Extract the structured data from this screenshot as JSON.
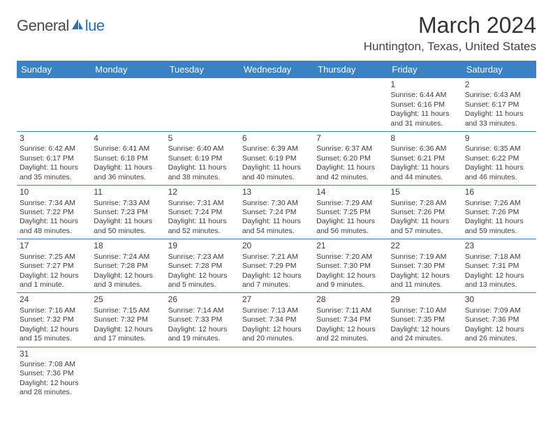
{
  "logo": {
    "text1": "General",
    "text2": "lue"
  },
  "title": "March 2024",
  "location": "Huntington, Texas, United States",
  "colors": {
    "headerBg": "#3b82c4",
    "headerText": "#ffffff",
    "logoBlue": "#2d6fb5",
    "text": "#333333"
  },
  "dayNames": [
    "Sunday",
    "Monday",
    "Tuesday",
    "Wednesday",
    "Thursday",
    "Friday",
    "Saturday"
  ],
  "weeks": [
    [
      null,
      null,
      null,
      null,
      null,
      {
        "n": "1",
        "sr": "Sunrise: 6:44 AM",
        "ss": "Sunset: 6:16 PM",
        "dl": "Daylight: 11 hours and 31 minutes."
      },
      {
        "n": "2",
        "sr": "Sunrise: 6:43 AM",
        "ss": "Sunset: 6:17 PM",
        "dl": "Daylight: 11 hours and 33 minutes."
      }
    ],
    [
      {
        "n": "3",
        "sr": "Sunrise: 6:42 AM",
        "ss": "Sunset: 6:17 PM",
        "dl": "Daylight: 11 hours and 35 minutes."
      },
      {
        "n": "4",
        "sr": "Sunrise: 6:41 AM",
        "ss": "Sunset: 6:18 PM",
        "dl": "Daylight: 11 hours and 36 minutes."
      },
      {
        "n": "5",
        "sr": "Sunrise: 6:40 AM",
        "ss": "Sunset: 6:19 PM",
        "dl": "Daylight: 11 hours and 38 minutes."
      },
      {
        "n": "6",
        "sr": "Sunrise: 6:39 AM",
        "ss": "Sunset: 6:19 PM",
        "dl": "Daylight: 11 hours and 40 minutes."
      },
      {
        "n": "7",
        "sr": "Sunrise: 6:37 AM",
        "ss": "Sunset: 6:20 PM",
        "dl": "Daylight: 11 hours and 42 minutes."
      },
      {
        "n": "8",
        "sr": "Sunrise: 6:36 AM",
        "ss": "Sunset: 6:21 PM",
        "dl": "Daylight: 11 hours and 44 minutes."
      },
      {
        "n": "9",
        "sr": "Sunrise: 6:35 AM",
        "ss": "Sunset: 6:22 PM",
        "dl": "Daylight: 11 hours and 46 minutes."
      }
    ],
    [
      {
        "n": "10",
        "sr": "Sunrise: 7:34 AM",
        "ss": "Sunset: 7:22 PM",
        "dl": "Daylight: 11 hours and 48 minutes."
      },
      {
        "n": "11",
        "sr": "Sunrise: 7:33 AM",
        "ss": "Sunset: 7:23 PM",
        "dl": "Daylight: 11 hours and 50 minutes."
      },
      {
        "n": "12",
        "sr": "Sunrise: 7:31 AM",
        "ss": "Sunset: 7:24 PM",
        "dl": "Daylight: 11 hours and 52 minutes."
      },
      {
        "n": "13",
        "sr": "Sunrise: 7:30 AM",
        "ss": "Sunset: 7:24 PM",
        "dl": "Daylight: 11 hours and 54 minutes."
      },
      {
        "n": "14",
        "sr": "Sunrise: 7:29 AM",
        "ss": "Sunset: 7:25 PM",
        "dl": "Daylight: 11 hours and 56 minutes."
      },
      {
        "n": "15",
        "sr": "Sunrise: 7:28 AM",
        "ss": "Sunset: 7:26 PM",
        "dl": "Daylight: 11 hours and 57 minutes."
      },
      {
        "n": "16",
        "sr": "Sunrise: 7:26 AM",
        "ss": "Sunset: 7:26 PM",
        "dl": "Daylight: 11 hours and 59 minutes."
      }
    ],
    [
      {
        "n": "17",
        "sr": "Sunrise: 7:25 AM",
        "ss": "Sunset: 7:27 PM",
        "dl": "Daylight: 12 hours and 1 minute."
      },
      {
        "n": "18",
        "sr": "Sunrise: 7:24 AM",
        "ss": "Sunset: 7:28 PM",
        "dl": "Daylight: 12 hours and 3 minutes."
      },
      {
        "n": "19",
        "sr": "Sunrise: 7:23 AM",
        "ss": "Sunset: 7:28 PM",
        "dl": "Daylight: 12 hours and 5 minutes."
      },
      {
        "n": "20",
        "sr": "Sunrise: 7:21 AM",
        "ss": "Sunset: 7:29 PM",
        "dl": "Daylight: 12 hours and 7 minutes."
      },
      {
        "n": "21",
        "sr": "Sunrise: 7:20 AM",
        "ss": "Sunset: 7:30 PM",
        "dl": "Daylight: 12 hours and 9 minutes."
      },
      {
        "n": "22",
        "sr": "Sunrise: 7:19 AM",
        "ss": "Sunset: 7:30 PM",
        "dl": "Daylight: 12 hours and 11 minutes."
      },
      {
        "n": "23",
        "sr": "Sunrise: 7:18 AM",
        "ss": "Sunset: 7:31 PM",
        "dl": "Daylight: 12 hours and 13 minutes."
      }
    ],
    [
      {
        "n": "24",
        "sr": "Sunrise: 7:16 AM",
        "ss": "Sunset: 7:32 PM",
        "dl": "Daylight: 12 hours and 15 minutes."
      },
      {
        "n": "25",
        "sr": "Sunrise: 7:15 AM",
        "ss": "Sunset: 7:32 PM",
        "dl": "Daylight: 12 hours and 17 minutes."
      },
      {
        "n": "26",
        "sr": "Sunrise: 7:14 AM",
        "ss": "Sunset: 7:33 PM",
        "dl": "Daylight: 12 hours and 19 minutes."
      },
      {
        "n": "27",
        "sr": "Sunrise: 7:13 AM",
        "ss": "Sunset: 7:34 PM",
        "dl": "Daylight: 12 hours and 20 minutes."
      },
      {
        "n": "28",
        "sr": "Sunrise: 7:11 AM",
        "ss": "Sunset: 7:34 PM",
        "dl": "Daylight: 12 hours and 22 minutes."
      },
      {
        "n": "29",
        "sr": "Sunrise: 7:10 AM",
        "ss": "Sunset: 7:35 PM",
        "dl": "Daylight: 12 hours and 24 minutes."
      },
      {
        "n": "30",
        "sr": "Sunrise: 7:09 AM",
        "ss": "Sunset: 7:36 PM",
        "dl": "Daylight: 12 hours and 26 minutes."
      }
    ],
    [
      {
        "n": "31",
        "sr": "Sunrise: 7:08 AM",
        "ss": "Sunset: 7:36 PM",
        "dl": "Daylight: 12 hours and 28 minutes."
      },
      null,
      null,
      null,
      null,
      null,
      null
    ]
  ]
}
